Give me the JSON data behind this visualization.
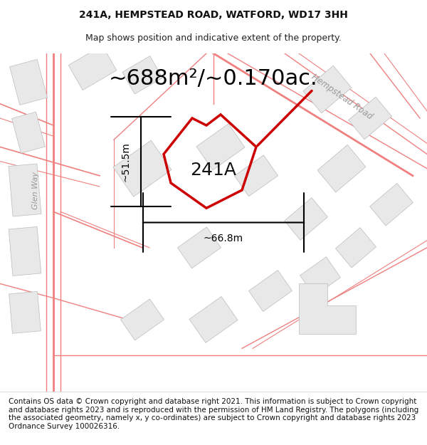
{
  "title": "241A, HEMPSTEAD ROAD, WATFORD, WD17 3HH",
  "subtitle": "Map shows position and indicative extent of the property.",
  "area_text": "~688m²/~0.170ac.",
  "label_241A": "241A",
  "dim_vertical": "~51.5m",
  "dim_horizontal": "~66.8m",
  "road_label": "Hempstead Road",
  "glen_way_label": "Glen Way",
  "copyright_text": "Contains OS data © Crown copyright and database right 2021. This information is subject to Crown copyright and database rights 2023 and is reproduced with the permission of HM Land Registry. The polygons (including the associated geometry, namely x, y co-ordinates) are subject to Crown copyright and database rights 2023 Ordnance Survey 100026316.",
  "bg_color": "#ffffff",
  "map_bg": "#f5f5f5",
  "road_line_color": "#f08080",
  "building_color": "#e8e8e8",
  "building_edge": "#cccccc",
  "highlight_color": "#cc0000",
  "dim_color": "#000000",
  "title_fontsize": 10,
  "subtitle_fontsize": 9,
  "area_fontsize": 22,
  "label_fontsize": 18,
  "dim_fontsize": 10,
  "copyright_fontsize": 7.5
}
